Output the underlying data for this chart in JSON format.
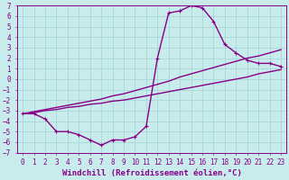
{
  "xlabel": "Windchill (Refroidissement éolien,°C)",
  "xlim": [
    -0.5,
    23.5
  ],
  "ylim": [
    -7,
    7
  ],
  "xticks": [
    0,
    1,
    2,
    3,
    4,
    5,
    6,
    7,
    8,
    9,
    10,
    11,
    12,
    13,
    14,
    15,
    16,
    17,
    18,
    19,
    20,
    21,
    22,
    23
  ],
  "yticks": [
    -7,
    -6,
    -5,
    -4,
    -3,
    -2,
    -1,
    0,
    1,
    2,
    3,
    4,
    5,
    6,
    7
  ],
  "bg_color": "#c8ecec",
  "grid_color": "#a8d8d8",
  "line_color": "#880088",
  "line1_x": [
    0,
    1,
    2,
    3,
    4,
    5,
    6,
    7,
    8,
    9,
    10,
    11,
    12,
    13,
    14,
    15,
    16,
    17,
    18,
    19,
    20,
    21,
    22,
    23
  ],
  "line1_y": [
    -3.3,
    -3.3,
    -3.8,
    -5.0,
    -5.0,
    -5.3,
    -5.8,
    -6.3,
    -5.8,
    -5.8,
    -5.5,
    -4.5,
    2.0,
    6.3,
    6.5,
    7.0,
    6.8,
    5.5,
    3.3,
    2.5,
    1.8,
    1.5,
    1.5,
    1.2
  ],
  "line2_x": [
    0,
    1,
    2,
    3,
    4,
    5,
    6,
    7,
    8,
    9,
    10,
    11,
    12,
    13,
    14,
    15,
    16,
    17,
    18,
    19,
    20,
    21,
    22,
    23
  ],
  "line2_y": [
    -3.3,
    -3.1,
    -2.9,
    -2.7,
    -2.5,
    -2.3,
    -2.1,
    -1.9,
    -1.6,
    -1.4,
    -1.1,
    -0.8,
    -0.5,
    -0.2,
    0.2,
    0.5,
    0.8,
    1.1,
    1.4,
    1.7,
    2.0,
    2.2,
    2.5,
    2.8
  ],
  "line3_x": [
    0,
    1,
    2,
    3,
    4,
    5,
    6,
    7,
    8,
    9,
    10,
    11,
    12,
    13,
    14,
    15,
    16,
    17,
    18,
    19,
    20,
    21,
    22,
    23
  ],
  "line3_y": [
    -3.3,
    -3.2,
    -3.0,
    -2.9,
    -2.7,
    -2.6,
    -2.4,
    -2.3,
    -2.1,
    -2.0,
    -1.8,
    -1.6,
    -1.4,
    -1.2,
    -1.0,
    -0.8,
    -0.6,
    -0.4,
    -0.2,
    0.0,
    0.2,
    0.5,
    0.7,
    0.9
  ],
  "marker_size": 3,
  "line_width": 1.0,
  "xlabel_fontsize": 6.5,
  "tick_fontsize": 5.5
}
